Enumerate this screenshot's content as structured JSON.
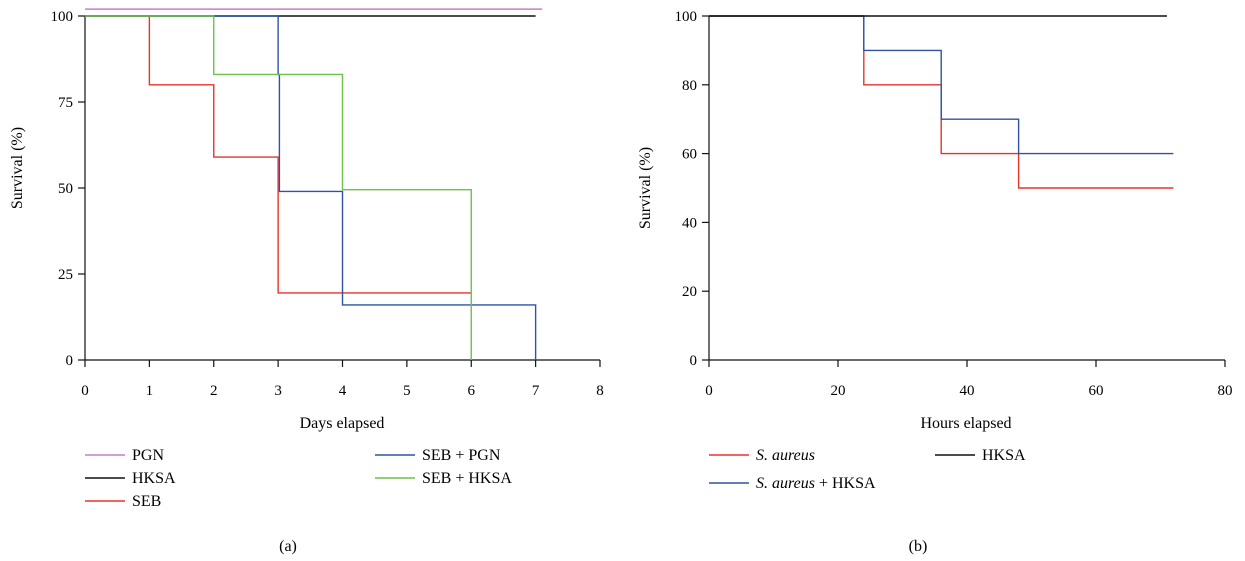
{
  "chart_data": [
    {
      "type": "line",
      "panel_label": "(a)",
      "xlabel": "Days elapsed",
      "ylabel": "Survival (%)",
      "xlim": [
        0,
        8
      ],
      "ylim": [
        0,
        100
      ],
      "xticks": [
        0,
        1,
        2,
        3,
        4,
        5,
        6,
        7,
        8
      ],
      "yticks": [
        0,
        25,
        50,
        75,
        100
      ],
      "grid": false,
      "legend_position": "bottom",
      "series": [
        {
          "name": "PGN",
          "color": "#c77ccb",
          "step": true,
          "points": [
            [
              0,
              102
            ],
            [
              7.1,
              102
            ]
          ]
        },
        {
          "name": "HKSA",
          "color": "#111111",
          "step": true,
          "points": [
            [
              0,
              100
            ],
            [
              7,
              100
            ]
          ]
        },
        {
          "name": "SEB",
          "color": "#e8332a",
          "step": true,
          "points": [
            [
              0,
              100
            ],
            [
              1,
              80
            ],
            [
              2,
              59
            ],
            [
              3,
              19.5
            ],
            [
              6,
              19.5
            ]
          ]
        },
        {
          "name": "SEB + PGN",
          "color": "#2f52a5",
          "step": true,
          "points": [
            [
              0,
              100
            ],
            [
              3,
              83
            ],
            [
              3.02,
              49
            ],
            [
              4,
              16
            ],
            [
              7,
              16
            ],
            [
              7,
              0
            ]
          ]
        },
        {
          "name": "SEB + HKSA",
          "color": "#6cc24a",
          "step": true,
          "points": [
            [
              0,
              100
            ],
            [
              2,
              83
            ],
            [
              4,
              49.5
            ],
            [
              6,
              0
            ]
          ]
        }
      ]
    },
    {
      "type": "line",
      "panel_label": "(b)",
      "xlabel": "Hours elapsed",
      "ylabel": "Survival (%)",
      "xlim": [
        0,
        80
      ],
      "ylim": [
        0,
        100
      ],
      "xticks": [
        0,
        20,
        40,
        60,
        80
      ],
      "yticks": [
        0,
        20,
        40,
        60,
        80,
        100
      ],
      "grid": false,
      "legend_position": "bottom",
      "series": [
        {
          "name": "S. aureus",
          "italic": "S. aureus",
          "suffix": "",
          "color": "#e8332a",
          "step": true,
          "points": [
            [
              0,
              100
            ],
            [
              24,
              80
            ],
            [
              36,
              60
            ],
            [
              48,
              50
            ],
            [
              72,
              50
            ]
          ]
        },
        {
          "name": "S. aureus + HKSA",
          "italic": "S. aureus",
          "suffix": " + HKSA",
          "color": "#2f52a5",
          "step": true,
          "points": [
            [
              0,
              100
            ],
            [
              24,
              90
            ],
            [
              36,
              70
            ],
            [
              48,
              60
            ],
            [
              72,
              60
            ]
          ]
        },
        {
          "name": "HKSA",
          "italic": "",
          "suffix": "HKSA",
          "color": "#111111",
          "step": true,
          "points": [
            [
              0,
              100
            ],
            [
              71,
              100
            ]
          ]
        }
      ]
    }
  ]
}
